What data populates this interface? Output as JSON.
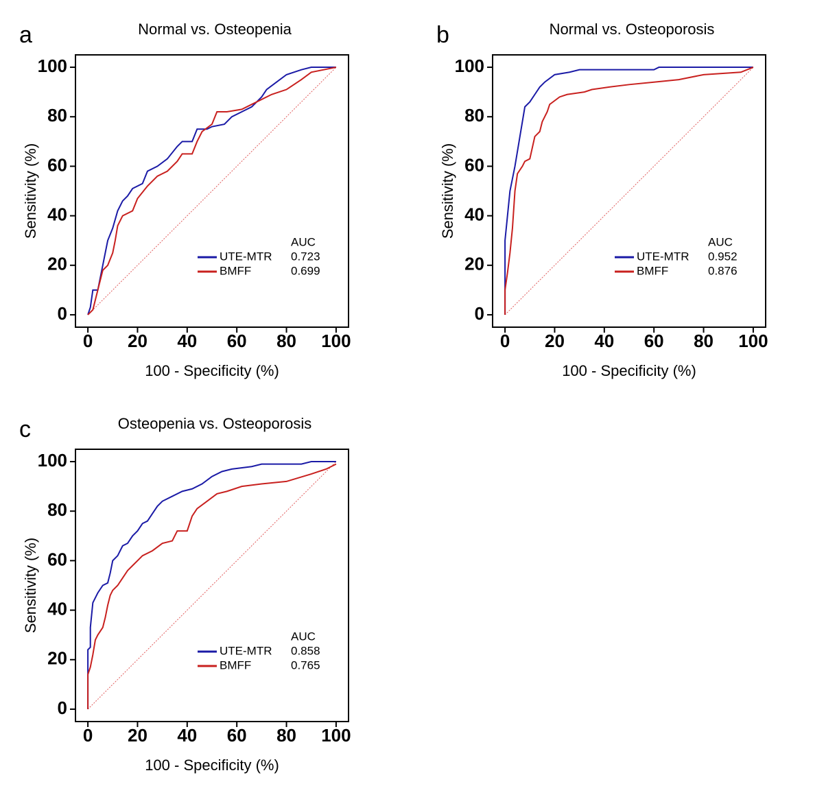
{
  "chart_data": [
    {
      "type": "line",
      "panel": "a",
      "title": "Normal vs. Osteopenia",
      "x_label": "100 - Specificity (%)",
      "y_label": "Sensitivity (%)",
      "xlim": [
        -5,
        105
      ],
      "ylim": [
        -5,
        105
      ],
      "xticks": [
        0,
        20,
        40,
        60,
        80,
        100
      ],
      "yticks": [
        0,
        20,
        40,
        60,
        80,
        100
      ],
      "legend_title": "AUC",
      "reference_line": {
        "x": [
          0,
          100
        ],
        "y": [
          0,
          100
        ],
        "color": "#e05a5a"
      },
      "series": [
        {
          "name": "UTE-MTR",
          "color": "#1a1aa6",
          "auc": 0.723,
          "x": [
            0,
            1,
            2,
            4,
            5,
            6,
            8,
            10,
            12,
            14,
            16,
            18,
            22,
            24,
            28,
            32,
            36,
            38,
            42,
            44,
            48,
            50,
            55,
            58,
            62,
            66,
            70,
            72,
            76,
            80,
            86,
            90,
            100
          ],
          "values": [
            0,
            3,
            10,
            10,
            15,
            20,
            30,
            35,
            42,
            46,
            48,
            51,
            53,
            58,
            60,
            63,
            68,
            70,
            70,
            75,
            75,
            76,
            77,
            80,
            82,
            84,
            88,
            91,
            94,
            97,
            99,
            100,
            100
          ]
        },
        {
          "name": "BMFF",
          "color": "#c8201e",
          "auc": 0.699,
          "x": [
            0,
            2,
            4,
            6,
            8,
            10,
            11,
            12,
            14,
            18,
            20,
            24,
            28,
            32,
            36,
            38,
            42,
            44,
            46,
            50,
            52,
            56,
            62,
            66,
            70,
            74,
            80,
            86,
            90,
            100
          ],
          "values": [
            0,
            2,
            10,
            18,
            20,
            25,
            30,
            36,
            40,
            42,
            47,
            52,
            56,
            58,
            62,
            65,
            65,
            70,
            74,
            77,
            82,
            82,
            83,
            85,
            87,
            89,
            91,
            95,
            98,
            100
          ]
        }
      ]
    },
    {
      "type": "line",
      "panel": "b",
      "title": "Normal vs. Osteoporosis",
      "x_label": "100 - Specificity (%)",
      "y_label": "Sensitivity (%)",
      "xlim": [
        -5,
        105
      ],
      "ylim": [
        -5,
        105
      ],
      "xticks": [
        0,
        20,
        40,
        60,
        80,
        100
      ],
      "yticks": [
        0,
        20,
        40,
        60,
        80,
        100
      ],
      "legend_title": "AUC",
      "reference_line": {
        "x": [
          0,
          100
        ],
        "y": [
          0,
          100
        ],
        "color": "#e05a5a"
      },
      "series": [
        {
          "name": "UTE-MTR",
          "color": "#1a1aa6",
          "auc": 0.952,
          "x": [
            0,
            0,
            1,
            2,
            3,
            4,
            5,
            6,
            7,
            8,
            10,
            12,
            14,
            16,
            20,
            26,
            30,
            60,
            62,
            100
          ],
          "values": [
            0,
            30,
            40,
            50,
            55,
            60,
            66,
            72,
            78,
            84,
            86,
            89,
            92,
            94,
            97,
            98,
            99,
            99,
            100,
            100
          ]
        },
        {
          "name": "BMFF",
          "color": "#c8201e",
          "auc": 0.876,
          "x": [
            0,
            0,
            1,
            2,
            3,
            4,
            5,
            7,
            8,
            10,
            12,
            14,
            15,
            17,
            18,
            22,
            25,
            32,
            35,
            42,
            50,
            60,
            70,
            80,
            95,
            100
          ],
          "values": [
            0,
            10,
            17,
            25,
            35,
            50,
            57,
            60,
            62,
            63,
            72,
            74,
            78,
            82,
            85,
            88,
            89,
            90,
            91,
            92,
            93,
            94,
            95,
            97,
            98,
            100
          ]
        }
      ]
    },
    {
      "type": "line",
      "panel": "c",
      "title": "Osteopenia vs. Osteoporosis",
      "x_label": "100 - Specificity (%)",
      "y_label": "Sensitivity (%)",
      "xlim": [
        -5,
        105
      ],
      "ylim": [
        -5,
        105
      ],
      "xticks": [
        0,
        20,
        40,
        60,
        80,
        100
      ],
      "yticks": [
        0,
        20,
        40,
        60,
        80,
        100
      ],
      "legend_title": "AUC",
      "reference_line": {
        "x": [
          0,
          100
        ],
        "y": [
          0,
          100
        ],
        "color": "#e05a5a"
      },
      "series": [
        {
          "name": "UTE-MTR",
          "color": "#1a1aa6",
          "auc": 0.858,
          "x": [
            0,
            0,
            0,
            1,
            1,
            2,
            3,
            4,
            6,
            8,
            9,
            10,
            12,
            14,
            16,
            18,
            20,
            22,
            24,
            26,
            28,
            30,
            34,
            38,
            42,
            46,
            50,
            54,
            58,
            66,
            70,
            86,
            90,
            100
          ],
          "values": [
            0,
            15,
            24,
            25,
            33,
            43,
            45,
            47,
            50,
            51,
            55,
            60,
            62,
            66,
            67,
            70,
            72,
            75,
            76,
            79,
            82,
            84,
            86,
            88,
            89,
            91,
            94,
            96,
            97,
            98,
            99,
            99,
            100,
            100
          ]
        },
        {
          "name": "BMFF",
          "color": "#c8201e",
          "auc": 0.765,
          "x": [
            0,
            0,
            1,
            2,
            3,
            4,
            6,
            7,
            8,
            9,
            10,
            12,
            14,
            16,
            18,
            20,
            22,
            26,
            30,
            34,
            36,
            40,
            42,
            44,
            48,
            52,
            56,
            62,
            70,
            80,
            90,
            96,
            100
          ],
          "values": [
            0,
            14,
            17,
            22,
            28,
            30,
            33,
            37,
            42,
            46,
            48,
            50,
            53,
            56,
            58,
            60,
            62,
            64,
            67,
            68,
            72,
            72,
            78,
            81,
            84,
            87,
            88,
            90,
            91,
            92,
            95,
            97,
            99
          ]
        }
      ]
    }
  ]
}
